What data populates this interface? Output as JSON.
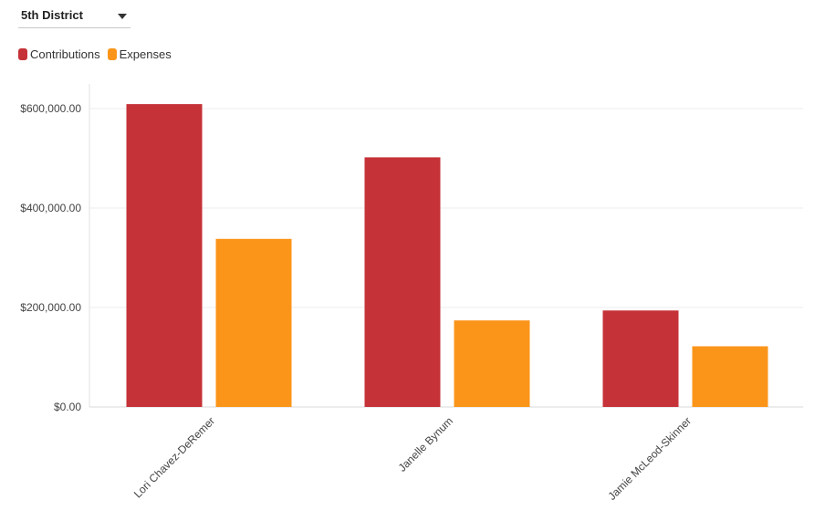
{
  "filter": {
    "selected": "5th District",
    "caret_icon": "chevron-down-icon"
  },
  "legend": [
    {
      "label": "Contributions",
      "color": "#c53237"
    },
    {
      "label": "Expenses",
      "color": "#fb951a"
    }
  ],
  "chart_data": {
    "type": "bar",
    "categories": [
      "Lori Chavez-DeRemer",
      "Janelle Bynum",
      "Jamie McLeod-Skinner"
    ],
    "series": [
      {
        "name": "Contributions",
        "color": "#c53237",
        "values": [
          609000,
          502000,
          194000
        ]
      },
      {
        "name": "Expenses",
        "color": "#fb951a",
        "values": [
          338000,
          174000,
          122000
        ]
      }
    ],
    "ylim": [
      0,
      650000
    ],
    "yticks": [
      0,
      200000,
      400000,
      600000
    ],
    "ytick_labels": [
      "$0.00",
      "$200,000.00",
      "$400,000.00",
      "$600,000.00"
    ],
    "grid": true,
    "legend_position": "top-left"
  }
}
